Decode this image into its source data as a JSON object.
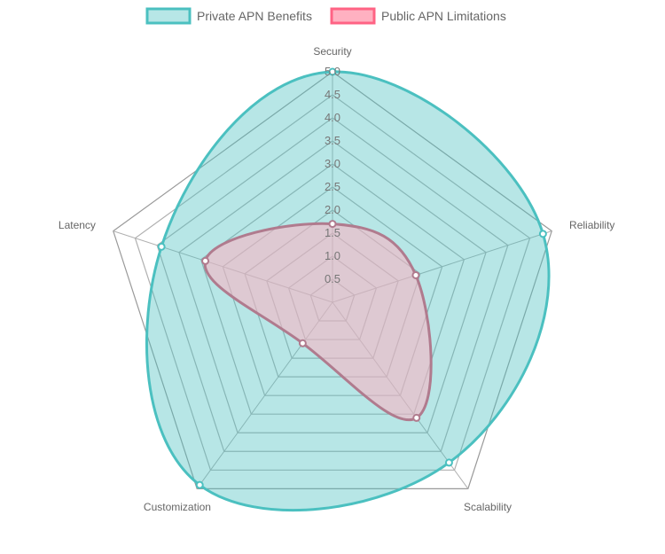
{
  "chart_data": {
    "type": "radar",
    "axes": [
      "Security",
      "Reliability",
      "Scalability",
      "Customization",
      "Latency"
    ],
    "r_min": 0,
    "r_max": 5,
    "tick_step": 0.5,
    "ticks": [
      "0.5",
      "1.0",
      "1.5",
      "2.0",
      "2.5",
      "3.0",
      "3.5",
      "4.0",
      "4.5",
      "5.0"
    ],
    "legend_position": "top-center",
    "series": [
      {
        "name": "Private APN Benefits",
        "values": [
          5.0,
          4.8,
          4.3,
          4.9,
          3.9
        ],
        "border_color": "#4bc0c0",
        "fill_color": "#4bc0c066"
      },
      {
        "name": "Public APN Limitations",
        "values": [
          1.7,
          1.9,
          3.1,
          1.1,
          2.9
        ],
        "border_color": "#b07b8e",
        "legend_border_color": "#ff6384",
        "fill_color": "#ffb1c1"
      }
    ]
  }
}
